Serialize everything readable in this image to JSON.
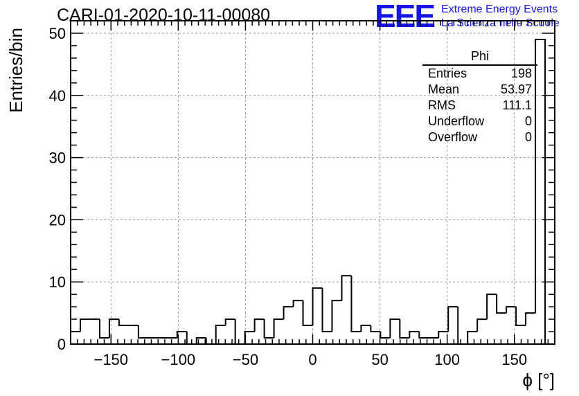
{
  "chart_data": {
    "type": "bar",
    "title": "CARI-01-2020-10-11-00080",
    "xlabel": "ϕ [°]",
    "ylabel": "Entries/bin",
    "xlim": [
      -180,
      180
    ],
    "ylim": [
      0,
      52
    ],
    "bin_width": 7.2,
    "bins": [
      {
        "x": -180.0,
        "y": 2
      },
      {
        "x": -172.8,
        "y": 4
      },
      {
        "x": -165.6,
        "y": 4
      },
      {
        "x": -158.4,
        "y": 1
      },
      {
        "x": -151.2,
        "y": 4
      },
      {
        "x": -144.0,
        "y": 3
      },
      {
        "x": -136.8,
        "y": 3
      },
      {
        "x": -129.6,
        "y": 1
      },
      {
        "x": -122.4,
        "y": 1
      },
      {
        "x": -115.2,
        "y": 1
      },
      {
        "x": -108.0,
        "y": 1
      },
      {
        "x": -100.8,
        "y": 2
      },
      {
        "x": -93.6,
        "y": 0
      },
      {
        "x": -86.4,
        "y": 1
      },
      {
        "x": -79.2,
        "y": 0
      },
      {
        "x": -72.0,
        "y": 3
      },
      {
        "x": -64.8,
        "y": 4
      },
      {
        "x": -57.6,
        "y": 0
      },
      {
        "x": -50.4,
        "y": 2
      },
      {
        "x": -43.2,
        "y": 4
      },
      {
        "x": -36.0,
        "y": 1
      },
      {
        "x": -28.8,
        "y": 4
      },
      {
        "x": -21.6,
        "y": 6
      },
      {
        "x": -14.4,
        "y": 7
      },
      {
        "x": -7.2,
        "y": 3
      },
      {
        "x": 0.0,
        "y": 9
      },
      {
        "x": 7.2,
        "y": 2
      },
      {
        "x": 14.4,
        "y": 7
      },
      {
        "x": 21.6,
        "y": 11
      },
      {
        "x": 28.8,
        "y": 2
      },
      {
        "x": 36.0,
        "y": 3
      },
      {
        "x": 43.2,
        "y": 2
      },
      {
        "x": 50.4,
        "y": 1
      },
      {
        "x": 57.6,
        "y": 4
      },
      {
        "x": 64.8,
        "y": 1
      },
      {
        "x": 72.0,
        "y": 2
      },
      {
        "x": 79.2,
        "y": 1
      },
      {
        "x": 86.4,
        "y": 1
      },
      {
        "x": 93.6,
        "y": 2
      },
      {
        "x": 100.8,
        "y": 6
      },
      {
        "x": 108.0,
        "y": 0
      },
      {
        "x": 115.2,
        "y": 2
      },
      {
        "x": 122.4,
        "y": 4
      },
      {
        "x": 129.6,
        "y": 8
      },
      {
        "x": 136.8,
        "y": 5
      },
      {
        "x": 144.0,
        "y": 6
      },
      {
        "x": 151.2,
        "y": 3
      },
      {
        "x": 158.4,
        "y": 5
      },
      {
        "x": 165.6,
        "y": 49
      }
    ],
    "x_ticks": [
      "−150",
      "−100",
      "−50",
      "0",
      "50",
      "100",
      "150"
    ],
    "x_tick_values": [
      -150,
      -100,
      -50,
      0,
      50,
      100,
      150
    ],
    "y_ticks": [
      "0",
      "10",
      "20",
      "30",
      "40",
      "50"
    ],
    "y_tick_values": [
      0,
      10,
      20,
      30,
      40,
      50
    ],
    "grid": true
  },
  "logo": {
    "mark": "EEE",
    "line1": "Extreme Energy Events",
    "line2": "La Scienza nelle Scuole"
  },
  "stats": {
    "name": "Phi",
    "rows": [
      {
        "label": "Entries",
        "value": "198"
      },
      {
        "label": "Mean",
        "value": "53.97"
      },
      {
        "label": "RMS",
        "value": "111.1"
      },
      {
        "label": "Underflow",
        "value": "0"
      },
      {
        "label": "Overflow",
        "value": "0"
      }
    ]
  },
  "colors": {
    "histogram": "#000000",
    "grid": "#999999",
    "logo": "#1515e8"
  }
}
